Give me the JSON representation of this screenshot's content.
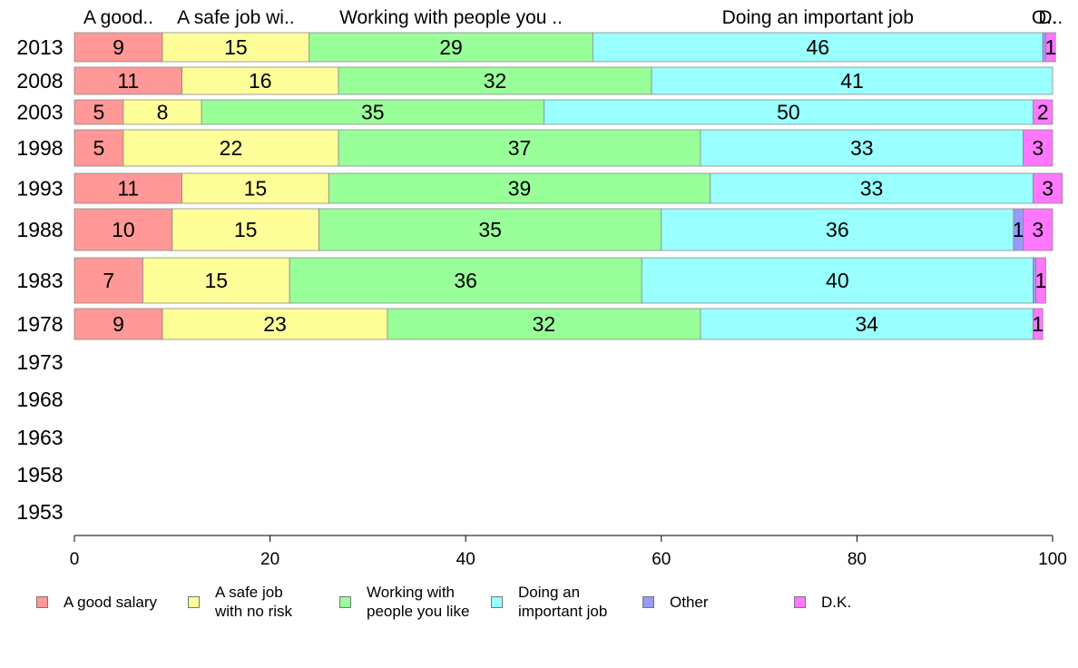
{
  "chart_data": {
    "type": "bar",
    "orientation": "horizontal",
    "stacked": true,
    "categories": [
      "2013",
      "2008",
      "2003",
      "1998",
      "1993",
      "1988",
      "1983",
      "1978",
      "1973",
      "1968",
      "1963",
      "1958",
      "1953"
    ],
    "series": [
      {
        "name": "A good salary",
        "top_label": "A good..",
        "color": "#ff9896",
        "values": [
          9,
          11,
          5,
          5,
          11,
          10,
          7,
          9,
          null,
          null,
          null,
          null,
          null
        ]
      },
      {
        "name": "A safe job\nwith no risk",
        "top_label": "A safe job wi..",
        "color": "#ffff99",
        "values": [
          15,
          16,
          8,
          22,
          15,
          15,
          15,
          23,
          null,
          null,
          null,
          null,
          null
        ]
      },
      {
        "name": "Working with\npeople you like",
        "top_label": "Working with people you ..",
        "color": "#99ff99",
        "values": [
          29,
          32,
          35,
          37,
          39,
          35,
          36,
          32,
          null,
          null,
          null,
          null,
          null
        ]
      },
      {
        "name": "Doing an\nimportant job",
        "top_label": "Doing an important job",
        "color": "#99ffff",
        "values": [
          46,
          41,
          50,
          33,
          33,
          36,
          40,
          34,
          null,
          null,
          null,
          null,
          null
        ]
      },
      {
        "name": "Other",
        "top_label": "O..",
        "color": "#9999ff",
        "values": [
          0.3,
          0,
          0,
          0,
          0,
          1,
          0.3,
          0,
          null,
          null,
          null,
          null,
          null
        ]
      },
      {
        "name": "D.K.",
        "top_label": "D..",
        "color": "#ff77ff",
        "values": [
          1,
          0,
          2,
          3,
          3,
          3,
          1,
          1,
          null,
          null,
          null,
          null,
          null
        ]
      }
    ],
    "value_labels": [
      [
        "9",
        "15",
        "29",
        "46",
        "",
        "1"
      ],
      [
        "11",
        "16",
        "32",
        "41",
        "",
        ""
      ],
      [
        "5",
        "8",
        "35",
        "50",
        "",
        "2"
      ],
      [
        "5",
        "22",
        "37",
        "33",
        "",
        "3"
      ],
      [
        "11",
        "15",
        "39",
        "33",
        "",
        "3"
      ],
      [
        "10",
        "15",
        "35",
        "36",
        "1",
        "3"
      ],
      [
        "7",
        "15",
        "36",
        "40",
        "",
        "1"
      ],
      [
        "9",
        "23",
        "32",
        "34",
        "",
        "1"
      ]
    ],
    "xlim": [
      0,
      100
    ],
    "x_ticks": [
      "0",
      "20",
      "40",
      "60",
      "80",
      "100"
    ],
    "grid": false,
    "legend_position": "bottom"
  }
}
